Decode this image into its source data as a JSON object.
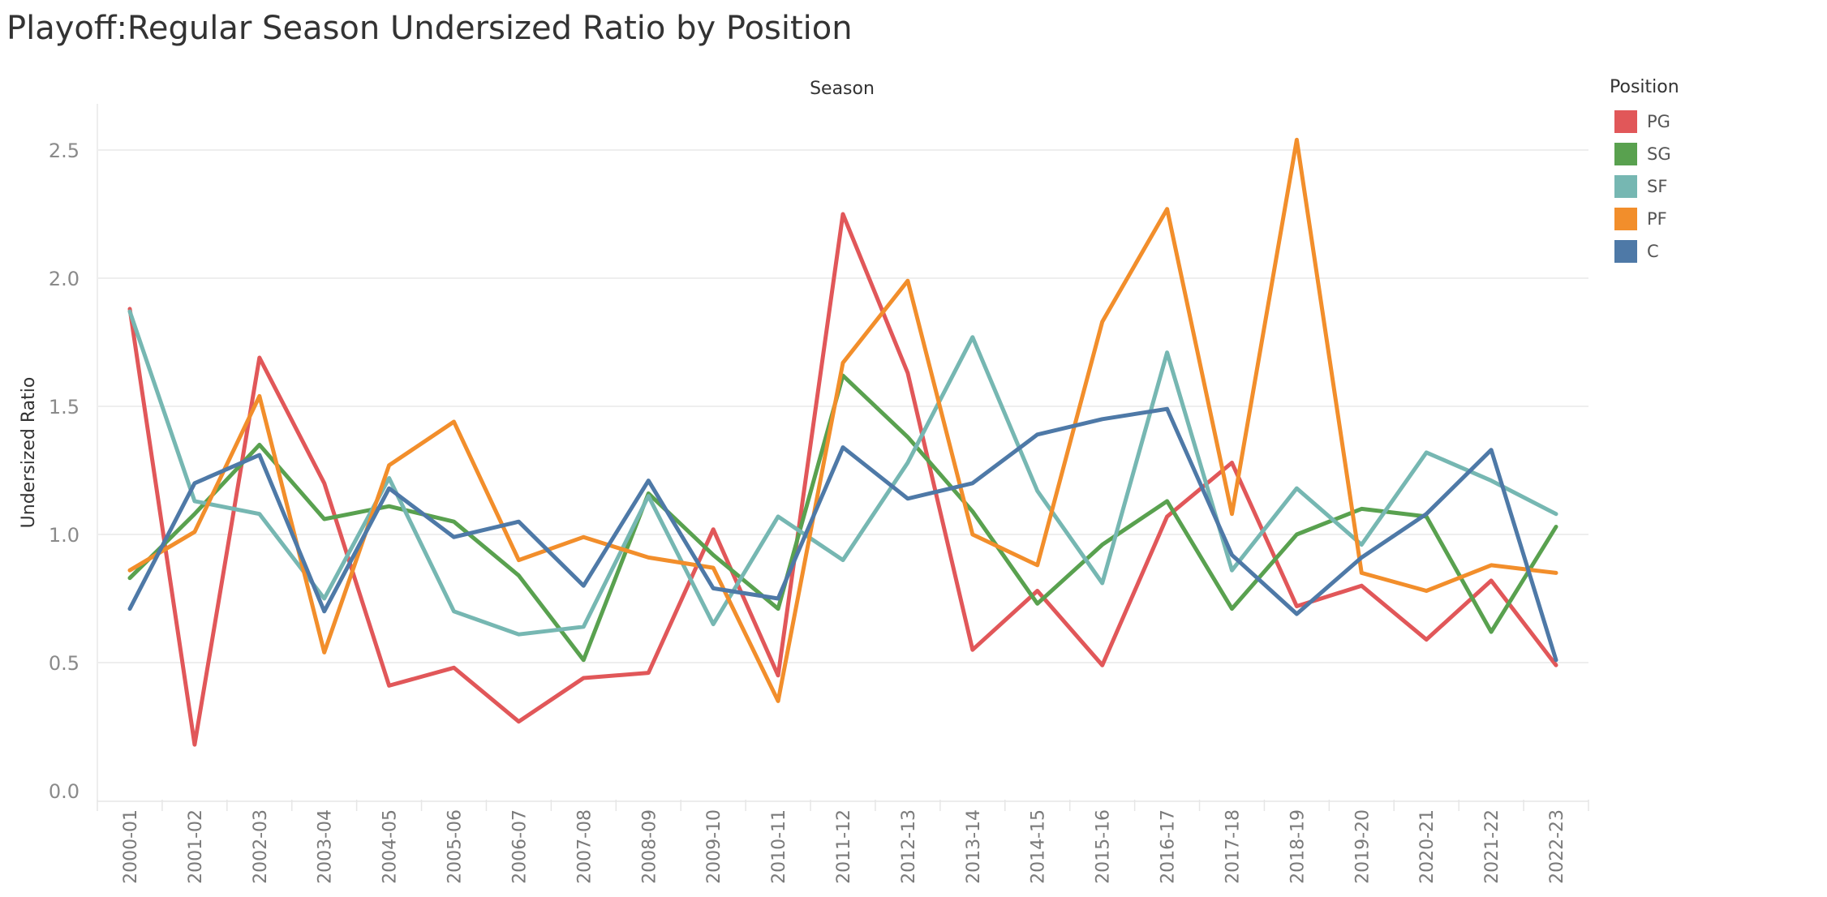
{
  "title": "Playoff:Regular Season Undersized Ratio by Position",
  "legend": {
    "title": "Position",
    "items": [
      {
        "label": "PG",
        "color": "#e15759"
      },
      {
        "label": "SG",
        "color": "#59a14f"
      },
      {
        "label": "SF",
        "color": "#76b7b2"
      },
      {
        "label": "PF",
        "color": "#f28e2b"
      },
      {
        "label": "C",
        "color": "#4e79a7"
      }
    ]
  },
  "chart_data": {
    "type": "line",
    "title": "Playoff:Regular Season Undersized Ratio by Position",
    "xlabel": "Season",
    "ylabel": "Undersized Ratio",
    "ylim": [
      0,
      2.7
    ],
    "yticks": [
      "0.0",
      "0.5",
      "1.0",
      "1.5",
      "2.0",
      "2.5"
    ],
    "grid": true,
    "legend_position": "right",
    "categories": [
      "2000-01",
      "2001-02",
      "2002-03",
      "2003-04",
      "2004-05",
      "2005-06",
      "2006-07",
      "2007-08",
      "2008-09",
      "2009-10",
      "2010-11",
      "2011-12",
      "2012-13",
      "2013-14",
      "2014-15",
      "2015-16",
      "2016-17",
      "2017-18",
      "2018-19",
      "2019-20",
      "2020-21",
      "2021-22",
      "2022-23"
    ],
    "series": [
      {
        "name": "PG",
        "color": "#e15759",
        "values": [
          1.88,
          0.18,
          1.69,
          1.2,
          0.41,
          0.48,
          0.27,
          0.44,
          0.46,
          1.02,
          0.45,
          2.25,
          1.63,
          0.55,
          0.78,
          0.49,
          1.07,
          1.28,
          0.72,
          0.8,
          0.59,
          0.82,
          0.49
        ]
      },
      {
        "name": "SG",
        "color": "#59a14f",
        "values": [
          0.83,
          1.08,
          1.35,
          1.06,
          1.11,
          1.05,
          0.84,
          0.51,
          1.16,
          0.92,
          0.71,
          1.62,
          1.38,
          1.09,
          0.73,
          0.96,
          1.13,
          0.71,
          1.0,
          1.1,
          1.07,
          0.62,
          1.03
        ]
      },
      {
        "name": "SF",
        "color": "#76b7b2",
        "values": [
          1.87,
          1.13,
          1.08,
          0.75,
          1.22,
          0.7,
          0.61,
          0.64,
          1.15,
          0.65,
          1.07,
          0.9,
          1.28,
          1.77,
          1.17,
          0.81,
          1.71,
          0.86,
          1.18,
          0.96,
          1.32,
          1.21,
          1.08
        ]
      },
      {
        "name": "PF",
        "color": "#f28e2b",
        "values": [
          0.86,
          1.01,
          1.54,
          0.54,
          1.27,
          1.44,
          0.9,
          0.99,
          0.91,
          0.87,
          0.35,
          1.67,
          1.99,
          1.0,
          0.88,
          1.83,
          2.27,
          1.08,
          2.54,
          0.85,
          0.78,
          0.88,
          0.85
        ]
      },
      {
        "name": "C",
        "color": "#4e79a7",
        "values": [
          0.71,
          1.2,
          1.31,
          0.7,
          1.18,
          0.99,
          1.05,
          0.8,
          1.21,
          0.79,
          0.75,
          1.34,
          1.14,
          1.2,
          1.39,
          1.45,
          1.49,
          0.92,
          0.69,
          0.91,
          1.08,
          1.33,
          0.51
        ]
      }
    ]
  }
}
